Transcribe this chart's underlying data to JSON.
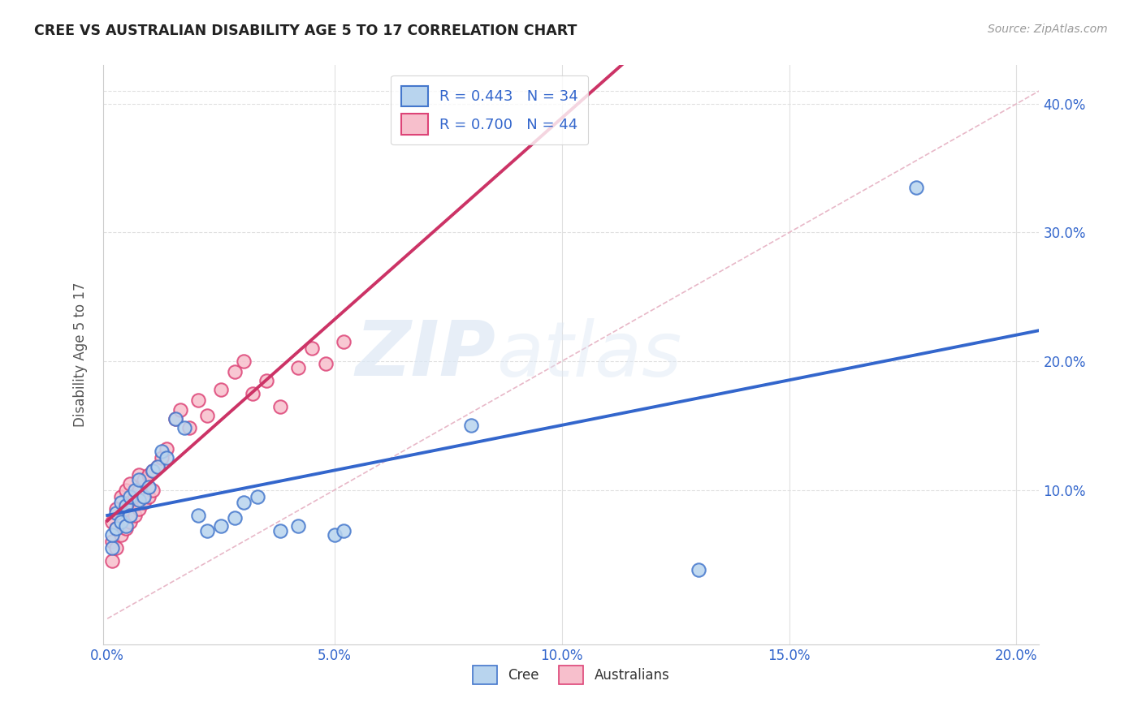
{
  "title": "CREE VS AUSTRALIAN DISABILITY AGE 5 TO 17 CORRELATION CHART",
  "source": "Source: ZipAtlas.com",
  "ylabel": "Disability Age 5 to 17",
  "xlim": [
    -0.001,
    0.205
  ],
  "ylim": [
    -0.02,
    0.43
  ],
  "plot_xlim": [
    0.0,
    0.2
  ],
  "plot_ylim": [
    0.0,
    0.42
  ],
  "xtick_labels": [
    "0.0%",
    "5.0%",
    "10.0%",
    "15.0%",
    "20.0%"
  ],
  "xtick_vals": [
    0.0,
    0.05,
    0.1,
    0.15,
    0.2
  ],
  "ytick_labels": [
    "10.0%",
    "20.0%",
    "30.0%",
    "40.0%"
  ],
  "ytick_vals": [
    0.1,
    0.2,
    0.3,
    0.4
  ],
  "legend_label1": "R = 0.443   N = 34",
  "legend_label2": "R = 0.700   N = 44",
  "legend_color1": "#b8d4ee",
  "legend_color2": "#f7bfcc",
  "line1_color": "#3366cc",
  "line2_color": "#cc3366",
  "scatter1_face": "#b8d4ee",
  "scatter2_face": "#f7bfcc",
  "scatter1_edge": "#4477cc",
  "scatter2_edge": "#dd4477",
  "diagonal_color": "#e8b8c8",
  "watermark_zip": "ZIP",
  "watermark_atlas": "atlas",
  "background_color": "#ffffff",
  "grid_color": "#e0e0e0",
  "text_color": "#3366cc",
  "cree_x": [
    0.001,
    0.001,
    0.002,
    0.002,
    0.003,
    0.003,
    0.004,
    0.004,
    0.005,
    0.005,
    0.006,
    0.007,
    0.007,
    0.008,
    0.009,
    0.01,
    0.011,
    0.012,
    0.013,
    0.015,
    0.017,
    0.02,
    0.022,
    0.025,
    0.028,
    0.03,
    0.033,
    0.038,
    0.042,
    0.05,
    0.052,
    0.08,
    0.13,
    0.178
  ],
  "cree_y": [
    0.055,
    0.065,
    0.07,
    0.082,
    0.075,
    0.09,
    0.088,
    0.072,
    0.095,
    0.08,
    0.1,
    0.108,
    0.092,
    0.095,
    0.102,
    0.115,
    0.118,
    0.13,
    0.125,
    0.155,
    0.148,
    0.08,
    0.068,
    0.072,
    0.078,
    0.09,
    0.095,
    0.068,
    0.072,
    0.065,
    0.068,
    0.15,
    0.038,
    0.335
  ],
  "aus_x": [
    0.001,
    0.001,
    0.001,
    0.002,
    0.002,
    0.002,
    0.003,
    0.003,
    0.003,
    0.004,
    0.004,
    0.004,
    0.005,
    0.005,
    0.005,
    0.006,
    0.006,
    0.007,
    0.007,
    0.007,
    0.008,
    0.008,
    0.009,
    0.009,
    0.01,
    0.01,
    0.011,
    0.012,
    0.013,
    0.015,
    0.016,
    0.018,
    0.02,
    0.022,
    0.025,
    0.028,
    0.03,
    0.032,
    0.035,
    0.038,
    0.042,
    0.045,
    0.048,
    0.052
  ],
  "aus_y": [
    0.045,
    0.06,
    0.075,
    0.055,
    0.07,
    0.085,
    0.065,
    0.08,
    0.095,
    0.07,
    0.085,
    0.1,
    0.075,
    0.09,
    0.105,
    0.08,
    0.095,
    0.085,
    0.1,
    0.112,
    0.09,
    0.108,
    0.095,
    0.112,
    0.1,
    0.115,
    0.118,
    0.125,
    0.132,
    0.155,
    0.162,
    0.148,
    0.17,
    0.158,
    0.178,
    0.192,
    0.2,
    0.175,
    0.185,
    0.165,
    0.195,
    0.21,
    0.198,
    0.215
  ]
}
